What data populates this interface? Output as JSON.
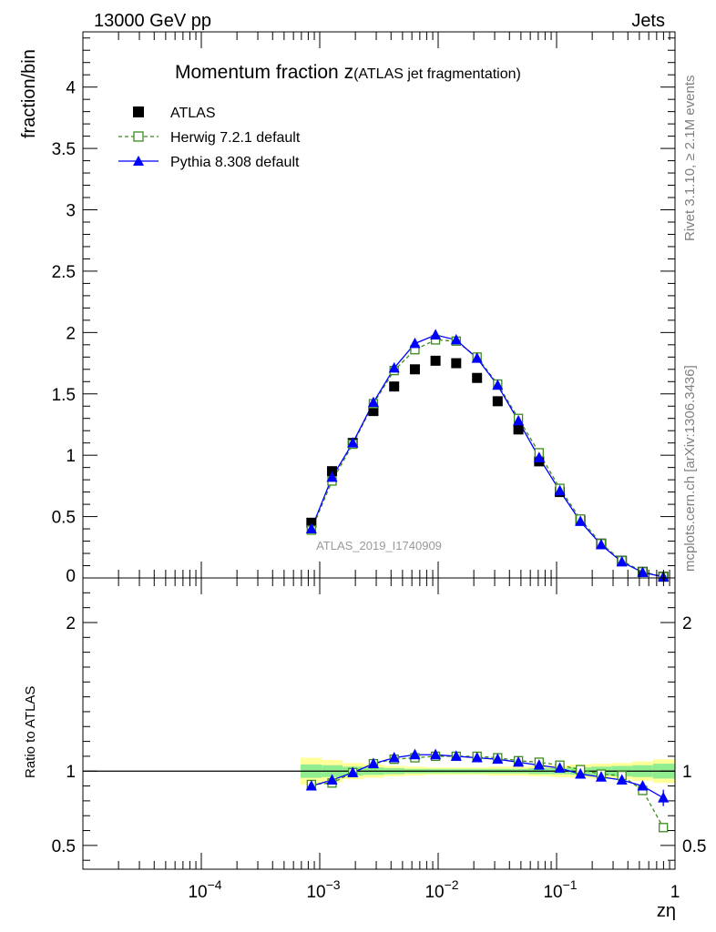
{
  "header": {
    "left": "13000 GeV pp",
    "right": "Jets"
  },
  "side_labels": {
    "top": "Rivet 3.1.10, ≥ 2.1M events",
    "bottom": "mcplots.cern.ch [arXiv:1306.3436]"
  },
  "chart_data": [
    {
      "type": "scatter",
      "title_main": "Momentum fraction z",
      "title_sub": "(ATLAS jet fragmentation)",
      "ylabel": "fraction/bin",
      "watermark": "ATLAS_2019_I1740909",
      "xscale": "log",
      "xlim": [
        1e-05,
        1
      ],
      "ylim": [
        0,
        4.45
      ],
      "yticks": [
        0,
        0.5,
        1,
        1.5,
        2,
        2.5,
        3,
        3.5,
        4
      ],
      "ytick_labels": [
        "0",
        "0.5",
        "1",
        "1.5",
        "2",
        "2.5",
        "3",
        "3.5",
        "4"
      ],
      "legend_position": "top-left",
      "x": [
        0.00085,
        0.00127,
        0.0019,
        0.00284,
        0.00425,
        0.00636,
        0.0095,
        0.0142,
        0.0213,
        0.0318,
        0.0476,
        0.0712,
        0.1065,
        0.159,
        0.238,
        0.356,
        0.533,
        0.797
      ],
      "series": [
        {
          "name": "ATLAS",
          "style": "data",
          "color": "#000000",
          "values": [
            0.45,
            0.87,
            1.1,
            1.36,
            1.56,
            1.7,
            1.77,
            1.75,
            1.63,
            1.44,
            1.21,
            0.95,
            0.7,
            0.47,
            0.28,
            0.14,
            0.05,
            0.01
          ]
        },
        {
          "name": "Herwig 7.2.1 default",
          "style": "dashed-open-square",
          "color": "#3d8b1f",
          "values": [
            0.39,
            0.79,
            1.09,
            1.42,
            1.69,
            1.86,
            1.94,
            1.93,
            1.8,
            1.58,
            1.3,
            1.02,
            0.73,
            0.48,
            0.28,
            0.14,
            0.05,
            0.01
          ]
        },
        {
          "name": "Pythia 8.308 default",
          "style": "solid-triangle",
          "color": "#0000ff",
          "values": [
            0.4,
            0.82,
            1.1,
            1.43,
            1.71,
            1.91,
            1.98,
            1.94,
            1.79,
            1.57,
            1.28,
            0.98,
            0.71,
            0.46,
            0.27,
            0.13,
            0.045,
            0.008
          ]
        }
      ]
    },
    {
      "type": "scatter",
      "ylabel": "Ratio to ATLAS",
      "xlabel": "zη",
      "xscale": "log",
      "xlim": [
        1e-05,
        1
      ],
      "ylim": [
        0.34,
        2.3
      ],
      "yticks": [
        0.5,
        1,
        2
      ],
      "ytick_labels": [
        "0.5",
        "1",
        "2"
      ],
      "xticks": [
        0.0001,
        0.001,
        0.01,
        0.1,
        1
      ],
      "xtick_labels": [
        {
          "base": "10",
          "exp": "−4"
        },
        {
          "base": "10",
          "exp": "−3"
        },
        {
          "base": "10",
          "exp": "−2"
        },
        {
          "base": "10",
          "exp": "−1"
        },
        {
          "base": "1",
          "exp": ""
        }
      ],
      "x": [
        0.00085,
        0.00127,
        0.0019,
        0.00284,
        0.00425,
        0.00636,
        0.0095,
        0.0142,
        0.0213,
        0.0318,
        0.0476,
        0.0712,
        0.1065,
        0.159,
        0.238,
        0.356,
        0.533,
        0.797
      ],
      "bands": {
        "edges": [
          0.00069,
          0.00104,
          0.00156,
          0.00233,
          0.0035,
          0.00522,
          0.0078,
          0.01167,
          0.01745,
          0.0261,
          0.039,
          0.0583,
          0.0872,
          0.13,
          0.195,
          0.291,
          0.436,
          0.652,
          1.0
        ],
        "green_halfwidth": [
          0.045,
          0.04,
          0.03,
          0.025,
          0.02,
          0.015,
          0.015,
          0.015,
          0.015,
          0.015,
          0.015,
          0.02,
          0.02,
          0.025,
          0.03,
          0.035,
          0.04,
          0.05
        ],
        "yellow_halfwidth": [
          0.09,
          0.075,
          0.055,
          0.045,
          0.035,
          0.03,
          0.025,
          0.025,
          0.025,
          0.03,
          0.03,
          0.035,
          0.04,
          0.045,
          0.05,
          0.055,
          0.065,
          0.08
        ],
        "green_color": "#90ee90",
        "yellow_color": "#ffff99"
      },
      "series": [
        {
          "name": "Herwig 7.2.1 default",
          "color": "#3d8b1f",
          "values": [
            0.91,
            0.92,
            0.99,
            1.05,
            1.08,
            1.09,
            1.1,
            1.1,
            1.1,
            1.09,
            1.07,
            1.06,
            1.04,
            1.01,
            0.98,
            0.97,
            0.87,
            0.62
          ]
        },
        {
          "name": "Pythia 8.308 default",
          "color": "#0000ff",
          "values": [
            0.9,
            0.94,
            0.99,
            1.05,
            1.09,
            1.11,
            1.11,
            1.1,
            1.09,
            1.08,
            1.06,
            1.04,
            1.02,
            0.98,
            0.96,
            0.94,
            0.9,
            0.82
          ]
        }
      ]
    }
  ]
}
